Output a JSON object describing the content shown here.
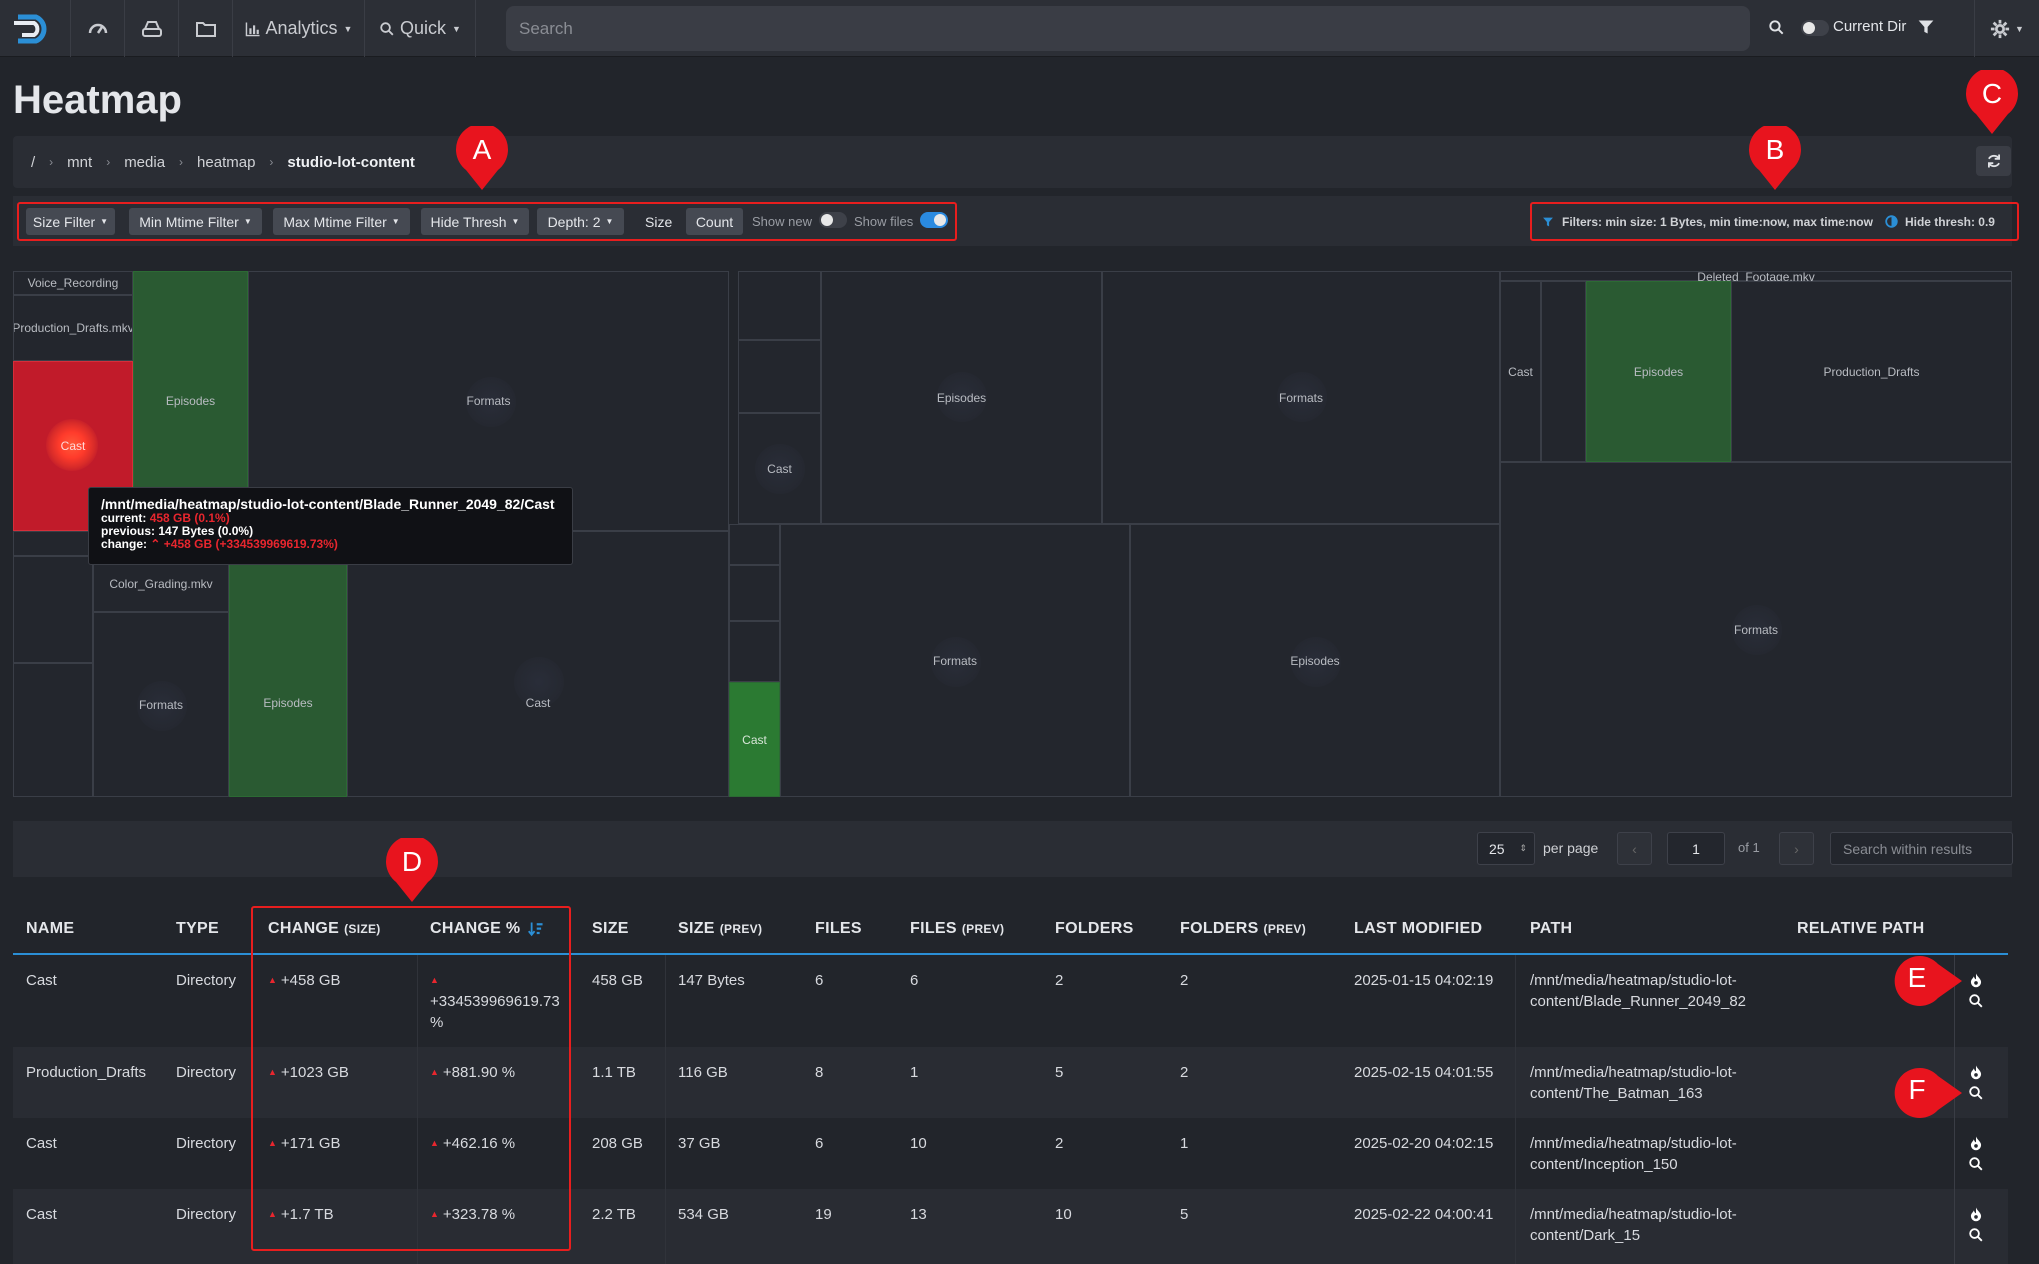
{
  "nav": {
    "analytics_label": "Analytics",
    "quick_label": "Quick",
    "search_placeholder": "Search",
    "current_dir_label": "Current Dir"
  },
  "page": {
    "title": "Heatmap"
  },
  "breadcrumb": [
    "/",
    "mnt",
    "media",
    "heatmap",
    "studio-lot-content"
  ],
  "markers": {
    "a": "A",
    "b": "B",
    "c": "C",
    "d": "D",
    "e": "E",
    "f": "F"
  },
  "toolbar": {
    "size_filter": "Size Filter",
    "min_mtime": "Min Mtime Filter",
    "max_mtime": "Max Mtime Filter",
    "hide_thresh": "Hide Thresh",
    "depth": "Depth: 2",
    "size_label": "Size",
    "count_label": "Count",
    "show_new": "Show new",
    "show_files": "Show files",
    "show_new_on": false,
    "show_files_on": true
  },
  "filter_summary": {
    "filters": "Filters: min size: 1 Bytes, min time:now, max time:now",
    "hide_thresh": "Hide thresh: 0.9"
  },
  "treemap": {
    "tiles": [
      "Voice_Recording",
      "Production_Drafts.mkv",
      "Cast",
      "Episodes",
      "Formats",
      "Color_Grading.mkv",
      "Episodes",
      "Cast",
      "Formats",
      "Cast",
      "Episodes",
      "Formats",
      "Cast",
      "Formats",
      "Episodes",
      "Deleted_Footage.mkv",
      "Cast",
      "Episodes",
      "Production_Drafts",
      "Formats"
    ],
    "colors": {
      "hot": "#c11b2a",
      "growth": "#2a5a32",
      "neutral": "#23262d"
    }
  },
  "tooltip": {
    "path": "/mnt/media/heatmap/studio-lot-content/Blade_Runner_2049_82/Cast",
    "current_label": "current:",
    "current_value": "458 GB (0.1%)",
    "previous": "previous: 147 Bytes (0.0%)",
    "change_label": "change:",
    "change_value": "+458 GB (+334539969619.73%)"
  },
  "pager": {
    "per_page_value": "25",
    "per_page_label": "per page",
    "page_value": "1",
    "of_label": "of 1",
    "search_placeholder": "Search within results"
  },
  "table": {
    "headers": {
      "name": "NAME",
      "type": "TYPE",
      "change_size": "CHANGE",
      "change_size_sub": "(SIZE)",
      "change_pct": "CHANGE %",
      "size": "SIZE",
      "size_prev": "SIZE",
      "size_prev_sub": "(PREV)",
      "files": "FILES",
      "files_prev": "FILES",
      "files_prev_sub": "(PREV)",
      "folders": "FOLDERS",
      "folders_prev": "FOLDERS",
      "folders_prev_sub": "(PREV)",
      "last_modified": "LAST MODIFIED",
      "path": "PATH",
      "relative_path": "RELATIVE PATH"
    },
    "rows": [
      {
        "name": "Cast",
        "type": "Directory",
        "change_size": "+458 GB",
        "change_pct_1": "",
        "change_pct_2": "+334539969619.73",
        "change_pct_3": "%",
        "size": "458 GB",
        "size_prev": "147 Bytes",
        "files": "6",
        "files_prev": "6",
        "folders": "2",
        "folders_prev": "2",
        "last_modified": "2025-01-15 04:02:19",
        "path_1": "/mnt/media/heatmap/studio-lot-",
        "path_2": "content/Blade_Runner_2049_82"
      },
      {
        "name": "Production_Drafts",
        "type": "Directory",
        "change_size": "+1023 GB",
        "change_pct_1": "+881.90 %",
        "size": "1.1 TB",
        "size_prev": "116 GB",
        "files": "8",
        "files_prev": "1",
        "folders": "5",
        "folders_prev": "2",
        "last_modified": "2025-02-15 04:01:55",
        "path_1": "/mnt/media/heatmap/studio-lot-",
        "path_2": "content/The_Batman_163"
      },
      {
        "name": "Cast",
        "type": "Directory",
        "change_size": "+171 GB",
        "change_pct_1": "+462.16 %",
        "size": "208 GB",
        "size_prev": "37 GB",
        "files": "6",
        "files_prev": "10",
        "folders": "2",
        "folders_prev": "1",
        "last_modified": "2025-02-20 04:02:15",
        "path_1": "/mnt/media/heatmap/studio-lot-",
        "path_2": "content/Inception_150"
      },
      {
        "name": "Cast",
        "type": "Directory",
        "change_size": "+1.7 TB",
        "change_pct_1": "+323.78 %",
        "size": "2.2 TB",
        "size_prev": "534 GB",
        "files": "19",
        "files_prev": "13",
        "folders": "10",
        "folders_prev": "5",
        "last_modified": "2025-02-22 04:00:41",
        "path_1": "/mnt/media/heatmap/studio-lot-",
        "path_2": "content/Dark_15"
      }
    ]
  }
}
